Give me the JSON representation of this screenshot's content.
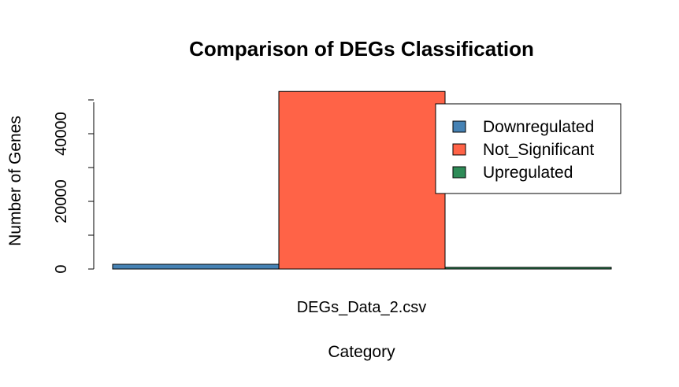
{
  "chart_data": {
    "type": "bar",
    "title": "Comparison of DEGs Classification",
    "xlabel": "Category",
    "ylabel": "Number of Genes",
    "categories": [
      "DEGs_Data_2.csv"
    ],
    "series": [
      {
        "name": "Downregulated",
        "color": "#4682B4",
        "values": [
          1400
        ]
      },
      {
        "name": "Not_Significant",
        "color": "#FF6347",
        "values": [
          52500
        ]
      },
      {
        "name": "Upregulated",
        "color": "#2E8B57",
        "values": [
          500
        ]
      }
    ],
    "yticks": [
      0,
      20000,
      40000
    ],
    "ylim": [
      0,
      50000
    ],
    "grid": false,
    "legend_position": "top-right"
  }
}
